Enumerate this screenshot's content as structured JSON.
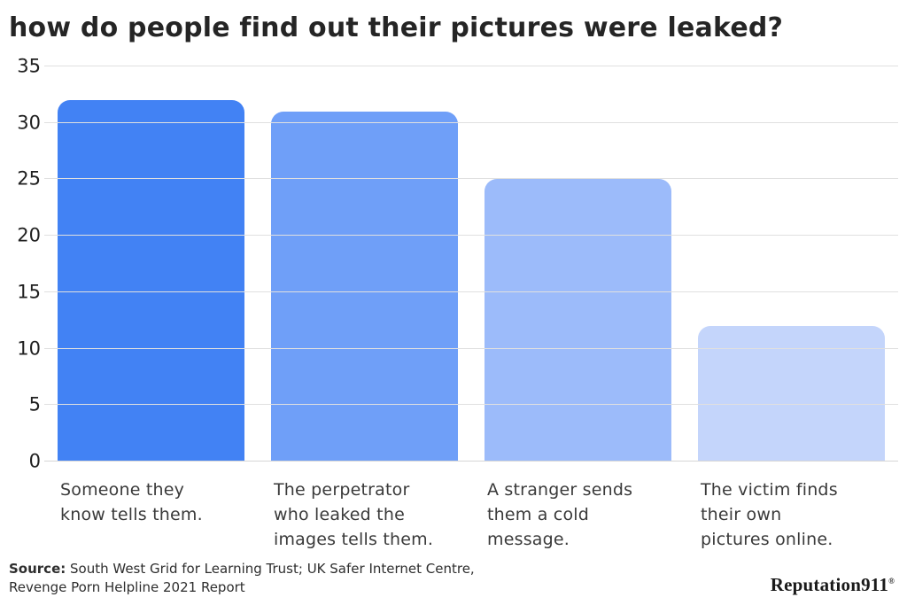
{
  "page": {
    "background": "#ffffff"
  },
  "title": "how do people find out their pictures were leaked?",
  "chart_data": {
    "type": "bar",
    "title": "how do people find out their pictures were leaked?",
    "categories": [
      "Someone they know tells them.",
      "The perpetrator who leaked the images tells them.",
      "A stranger sends them a cold message.",
      "The victim finds their own pictures online."
    ],
    "categories_display": [
      "Someone they\nknow tells them.",
      "The perpetrator\nwho leaked the\nimages tells them.",
      "A stranger sends\nthem a cold\nmessage.",
      "The victim finds\ntheir own\npictures online."
    ],
    "values": [
      32,
      31,
      25,
      12
    ],
    "xlabel": "",
    "ylabel": "",
    "ylim": [
      0,
      35
    ],
    "ytick_step": 5,
    "ytick_labels": [
      "0",
      "5",
      "10",
      "15",
      "20",
      "25",
      "30",
      "35"
    ],
    "grid": "horizontal",
    "legend": "none",
    "bar_colors": [
      "#4282f4",
      "#6f9ff8",
      "#9cbbfa",
      "#c4d5fb"
    ],
    "gridline_color": "#e0e0e0",
    "baseline_color": "#d6d6d6"
  },
  "source": {
    "label": "Source:",
    "text": " South West Grid for Learning Trust; UK Safer Internet Centre,\nRevenge Porn Helpline 2021 Report"
  },
  "logo": {
    "brand": "Reputation",
    "number": "911",
    "registered": "®",
    "number_color": "#c23b3f",
    "brand_color": "#1a1a1a"
  }
}
